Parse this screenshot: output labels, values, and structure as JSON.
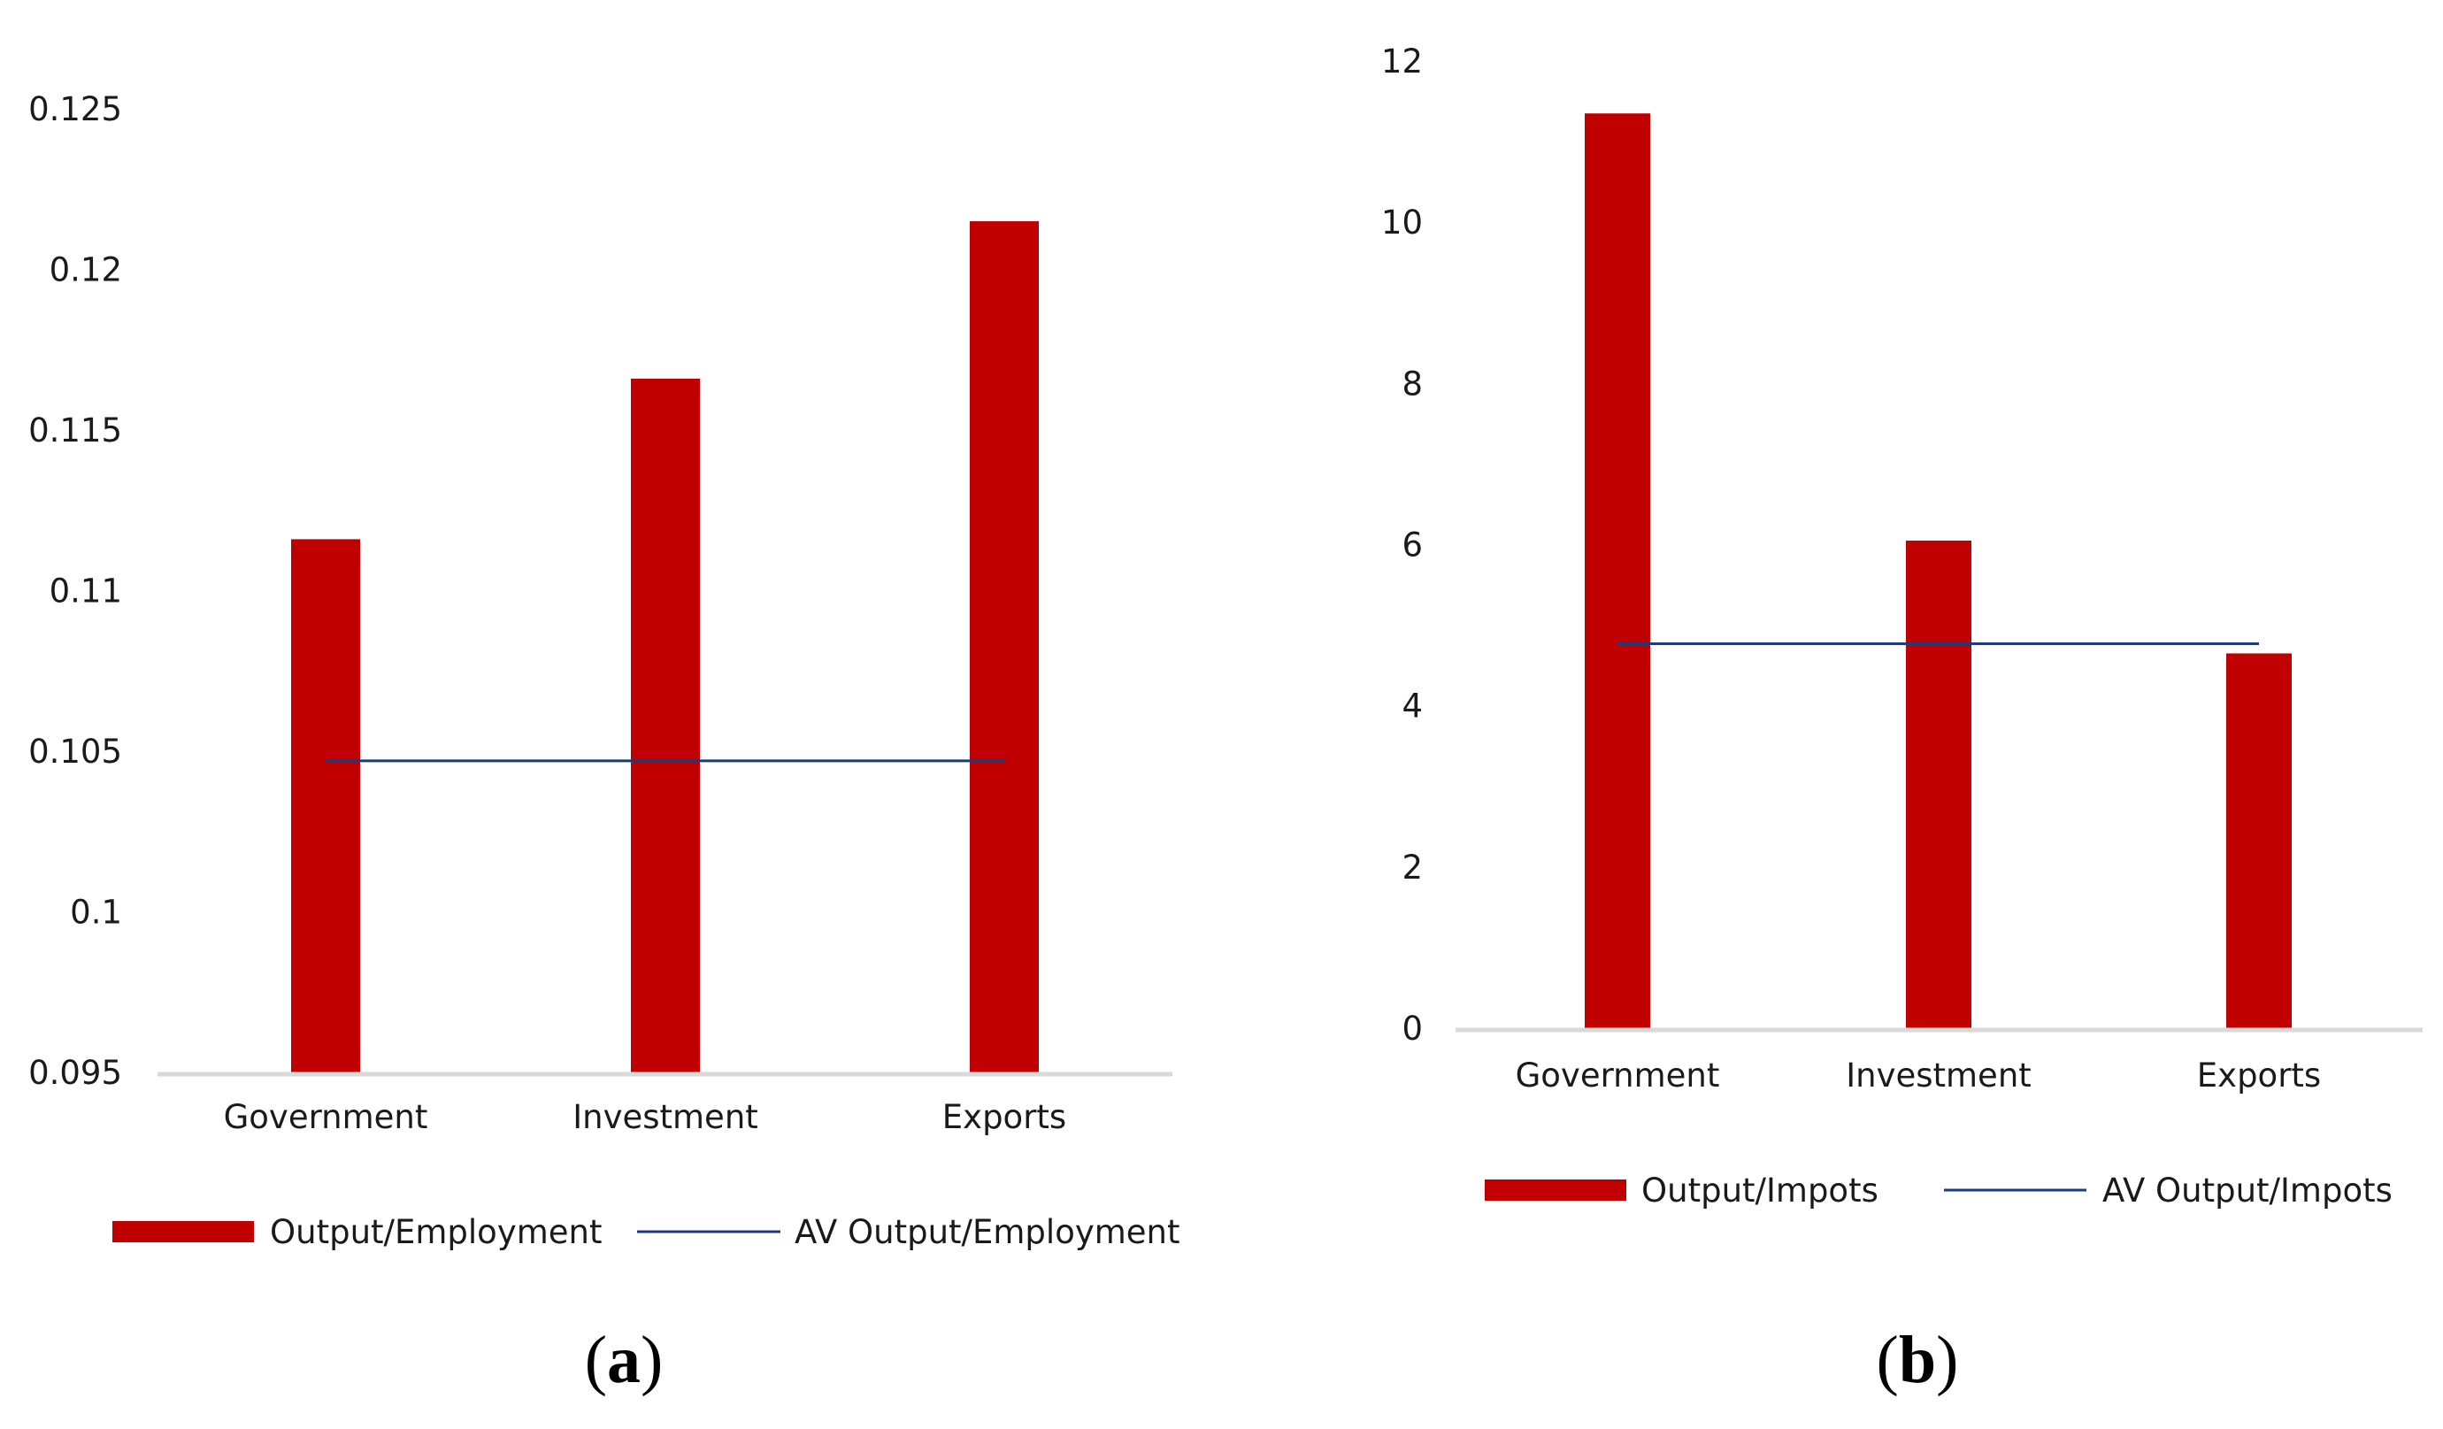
{
  "chart_data": [
    {
      "type": "bar",
      "panel_label": "a",
      "categories": [
        "Government",
        "Investment",
        "Exports"
      ],
      "series": [
        {
          "name": "Output/Employment",
          "kind": "bar",
          "color": "#c00000",
          "values": [
            0.1116,
            0.1166,
            0.1215
          ]
        },
        {
          "name": "AV Output/Employment",
          "kind": "line",
          "color": "#1f3a7a",
          "values": [
            0.1047,
            0.1047,
            0.1047
          ]
        }
      ],
      "ylim": [
        0.095,
        0.125
      ],
      "yticks": [
        "0.095",
        "0.1",
        "0.105",
        "0.11",
        "0.115",
        "0.12",
        "0.125"
      ],
      "ytick_values": [
        0.095,
        0.1,
        0.105,
        0.11,
        0.115,
        0.12,
        0.125
      ],
      "title": "",
      "xlabel": "",
      "ylabel": "",
      "grid": false,
      "legend": "bottom"
    },
    {
      "type": "bar",
      "panel_label": "b",
      "categories": [
        "Government",
        "Investment",
        "Exports"
      ],
      "series": [
        {
          "name": "Output/Impots",
          "kind": "bar",
          "color": "#c00000",
          "values": [
            11.35,
            6.05,
            4.65
          ]
        },
        {
          "name": "AV Output/Impots",
          "kind": "line",
          "color": "#1f3a7a",
          "values": [
            4.77,
            4.77,
            4.77
          ]
        }
      ],
      "ylim": [
        0,
        12
      ],
      "yticks": [
        "0",
        "2",
        "4",
        "6",
        "8",
        "10",
        "12"
      ],
      "ytick_values": [
        0,
        2,
        4,
        6,
        8,
        10,
        12
      ],
      "title": "",
      "xlabel": "",
      "ylabel": "",
      "grid": false,
      "legend": "bottom"
    }
  ]
}
